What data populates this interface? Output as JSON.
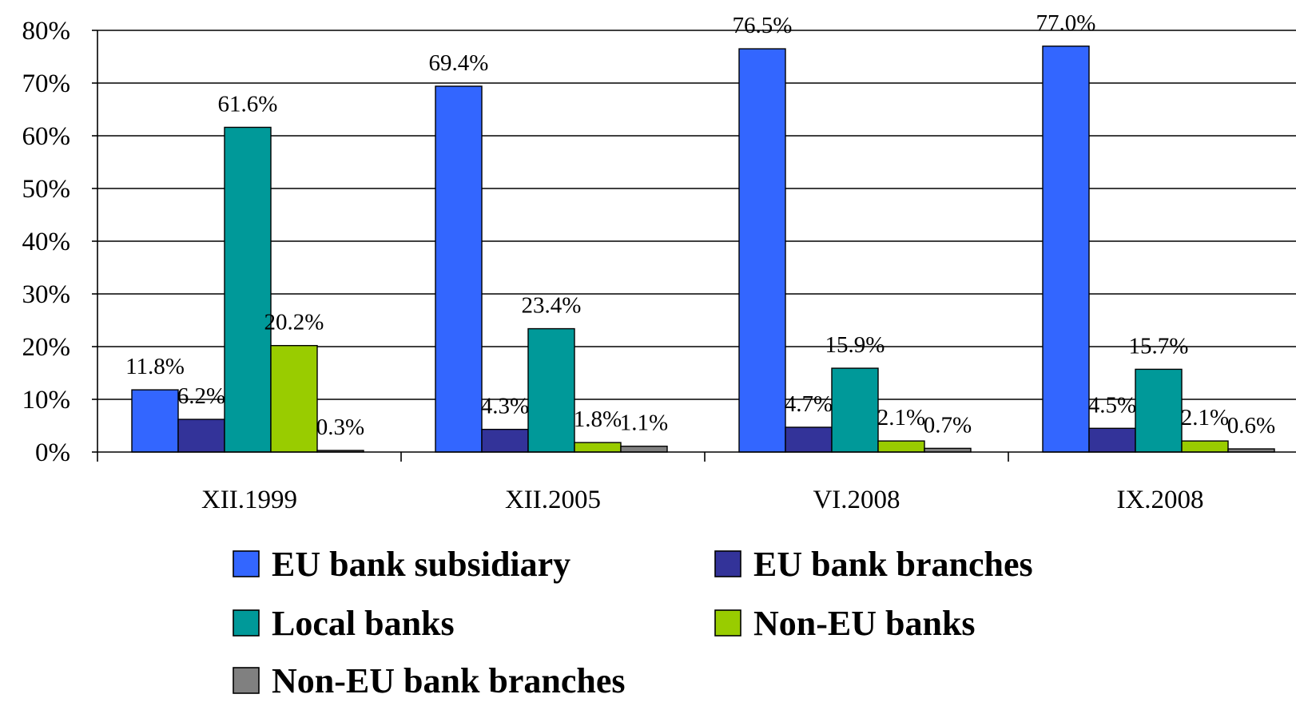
{
  "chart_data": {
    "type": "bar",
    "categories": [
      "XII.1999",
      "XII.2005",
      "VI.2008",
      "IX.2008"
    ],
    "series": [
      {
        "name": "EU bank subsidiary",
        "color": "#3366ff",
        "values": [
          11.8,
          69.4,
          76.5,
          77.0
        ],
        "labels": [
          "11.8%",
          "69.4%",
          "76.5%",
          "77.0%"
        ]
      },
      {
        "name": "EU bank branches",
        "color": "#333399",
        "values": [
          6.2,
          4.3,
          4.7,
          4.5
        ],
        "labels": [
          "6.2%",
          "4.3%",
          "4.7%",
          "4.5%"
        ]
      },
      {
        "name": "Local banks",
        "color": "#009999",
        "values": [
          61.6,
          23.4,
          15.9,
          15.7
        ],
        "labels": [
          "61.6%",
          "23.4%",
          "15.9%",
          "15.7%"
        ]
      },
      {
        "name": "Non-EU banks",
        "color": "#99cc00",
        "values": [
          20.2,
          1.8,
          2.1,
          2.1
        ],
        "labels": [
          "20.2%",
          "1.8%",
          "2.1%",
          "2.1%"
        ]
      },
      {
        "name": "Non-EU bank branches",
        "color": "#808080",
        "values": [
          0.3,
          1.1,
          0.7,
          0.6
        ],
        "labels": [
          "0.3%",
          "1.1%",
          "0.7%",
          "0.6%"
        ]
      }
    ],
    "yticks": [
      "0%",
      "10%",
      "20%",
      "30%",
      "40%",
      "50%",
      "60%",
      "70%",
      "80%"
    ],
    "ylim": [
      0,
      80
    ],
    "grid": true,
    "legend_position": "bottom"
  }
}
